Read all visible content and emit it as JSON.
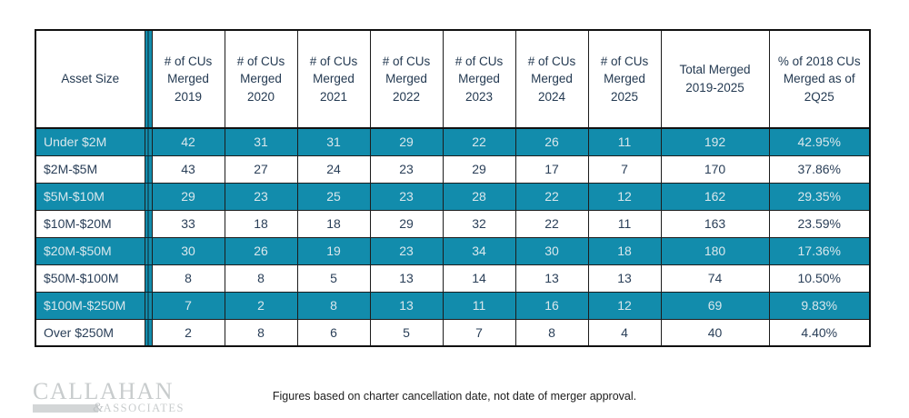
{
  "colors": {
    "teal_row": "#128cac",
    "dark_text": "#243a52",
    "teal_row_text": "#d9e7ec",
    "border": "#111111",
    "logo_gray": "#c8cccd"
  },
  "chart_data": {
    "type": "table",
    "title": "",
    "columns": [
      "Asset Size",
      "# of CUs Merged 2019",
      "# of CUs Merged 2020",
      "# of CUs Merged 2021",
      "# of CUs Merged 2022",
      "# of CUs Merged 2023",
      "# of CUs Merged 2024",
      "# of CUs Merged 2025",
      "Total Merged 2019-2025",
      "% of 2018 CUs Merged as of 2Q25"
    ],
    "rows": [
      {
        "label": "Under $2M",
        "values": [
          42,
          31,
          31,
          29,
          22,
          26,
          11,
          192,
          "42.95%"
        ]
      },
      {
        "label": "$2M-$5M",
        "values": [
          43,
          27,
          24,
          23,
          29,
          17,
          7,
          170,
          "37.86%"
        ]
      },
      {
        "label": "$5M-$10M",
        "values": [
          29,
          23,
          25,
          23,
          28,
          22,
          12,
          162,
          "29.35%"
        ]
      },
      {
        "label": "$10M-$20M",
        "values": [
          33,
          18,
          18,
          29,
          32,
          22,
          11,
          163,
          "23.59%"
        ]
      },
      {
        "label": "$20M-$50M",
        "values": [
          30,
          26,
          19,
          23,
          34,
          30,
          18,
          180,
          "17.36%"
        ]
      },
      {
        "label": "$50M-$100M",
        "values": [
          8,
          8,
          5,
          13,
          14,
          13,
          13,
          74,
          "10.50%"
        ]
      },
      {
        "label": "$100M-$250M",
        "values": [
          7,
          2,
          8,
          13,
          11,
          16,
          12,
          69,
          "9.83%"
        ]
      },
      {
        "label": "Over $250M",
        "values": [
          2,
          8,
          6,
          5,
          7,
          8,
          4,
          40,
          "4.40%"
        ]
      }
    ]
  },
  "footer": {
    "note": "Figures based on charter cancellation date, not date of merger approval."
  },
  "logo": {
    "line1": "CALLAHAN",
    "amp": "&",
    "line2": "ASSOCIATES"
  }
}
